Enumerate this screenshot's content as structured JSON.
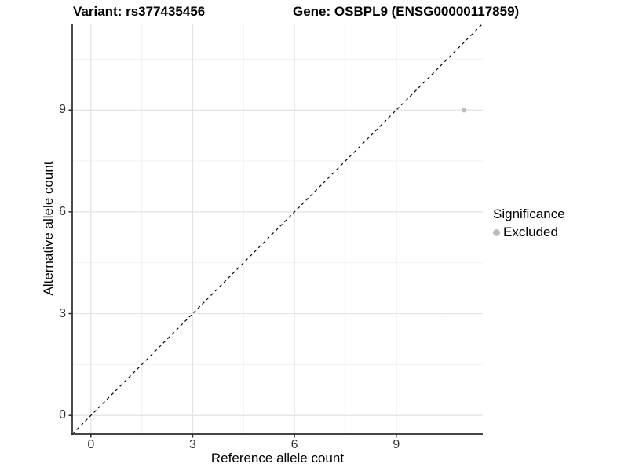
{
  "chart_data": {
    "type": "scatter",
    "titles": [
      "Variant: rs377435456",
      "Gene: OSBPL9 (ENSG00000117859)"
    ],
    "xlabel": "Reference allele count",
    "ylabel": "Alternative allele count",
    "xlim": [
      -0.55,
      11.55
    ],
    "ylim": [
      -0.55,
      11.55
    ],
    "x_ticks": [
      0,
      3,
      6,
      9
    ],
    "y_ticks": [
      0,
      3,
      6,
      9
    ],
    "minor_ticks": [
      1.5,
      4.5,
      7.5,
      10.5
    ],
    "grid": true,
    "legend_position": "right",
    "legend": {
      "title": "Significance",
      "items": [
        {
          "label": "Excluded",
          "color": "#bdbdbd"
        }
      ]
    },
    "series": [
      {
        "name": "Excluded",
        "color": "#bdbdbd",
        "points": [
          {
            "x": 11,
            "y": 9
          }
        ]
      }
    ],
    "reference_line": {
      "type": "identity",
      "slope": 1,
      "intercept": 0,
      "style": "dashed"
    },
    "colors": {
      "grid_major": "#e3e3e3",
      "grid_minor": "#f0f0f0",
      "axis_line": "#2b2b2b",
      "tick_mark": "#2b2b2b",
      "reference_line": "#000000",
      "point": "#bdbdbd"
    }
  }
}
